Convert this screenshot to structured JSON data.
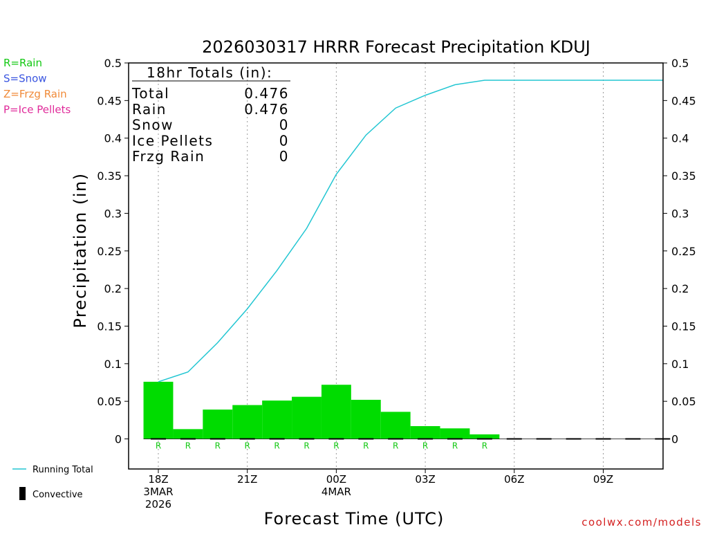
{
  "chart_data": {
    "type": "bar",
    "title": "2026030317 HRRR Forecast Precipitation KDUJ",
    "xlabel": "Forecast Time (UTC)",
    "ylabel": "Precipitation (in)",
    "ylim": [
      -0.04,
      0.5
    ],
    "yticks": [
      "0",
      "0.05",
      "0.1",
      "0.15",
      "0.2",
      "0.25",
      "0.3",
      "0.35",
      "0.4",
      "0.45",
      "0.5"
    ],
    "x_tick_labels": [
      {
        "lines": [
          "18Z",
          "3MAR",
          "2026"
        ]
      },
      {
        "lines": [
          "21Z"
        ]
      },
      {
        "lines": [
          "00Z",
          "4MAR"
        ]
      },
      {
        "lines": [
          "03Z"
        ]
      },
      {
        "lines": [
          "06Z"
        ]
      },
      {
        "lines": [
          "09Z"
        ]
      }
    ],
    "x_hours": [
      0,
      1,
      2,
      3,
      4,
      5,
      6,
      7,
      8,
      9,
      10,
      11,
      12,
      13,
      14,
      15,
      16,
      17
    ],
    "hourly_rain": [
      0.076,
      0.013,
      0.039,
      0.045,
      0.051,
      0.056,
      0.072,
      0.052,
      0.036,
      0.017,
      0.014,
      0.006,
      0,
      0,
      0,
      0,
      0,
      0
    ],
    "precip_type_markers": [
      "R",
      "R",
      "R",
      "R",
      "R",
      "R",
      "R",
      "R",
      "R",
      "R",
      "R",
      "R",
      "",
      "",
      "",
      "",
      "",
      ""
    ],
    "running_total": [
      0.076,
      0.089,
      0.128,
      0.173,
      0.224,
      0.28,
      0.352,
      0.404,
      0.44,
      0.457,
      0.471,
      0.477,
      0.477,
      0.477,
      0.477,
      0.477,
      0.477,
      0.477
    ],
    "series": [
      {
        "name": "Running Total",
        "color": "#22c6d2"
      },
      {
        "name": "Convective",
        "color": "#000000"
      }
    ],
    "precip_legend": [
      {
        "text": "R=Rain",
        "color": "#12c812"
      },
      {
        "text": "S=Snow",
        "color": "#3a55e0"
      },
      {
        "text": "Z=Frzg Rain",
        "color": "#f08a38"
      },
      {
        "text": "P=Ice Pellets",
        "color": "#e02a9a"
      }
    ],
    "totals_box": {
      "header": "18hr Totals (in):",
      "rows": [
        {
          "label": "Total",
          "value": "0.476"
        },
        {
          "label": "Rain",
          "value": "0.476"
        },
        {
          "label": "Snow",
          "value": "0"
        },
        {
          "label": "Ice Pellets",
          "value": "0"
        },
        {
          "label": "Frzg Rain",
          "value": "0"
        }
      ]
    },
    "credit": "coolwx.com/models",
    "bar_color": "#00dc00",
    "grid": "vertical dotted at 3-hour ticks"
  }
}
